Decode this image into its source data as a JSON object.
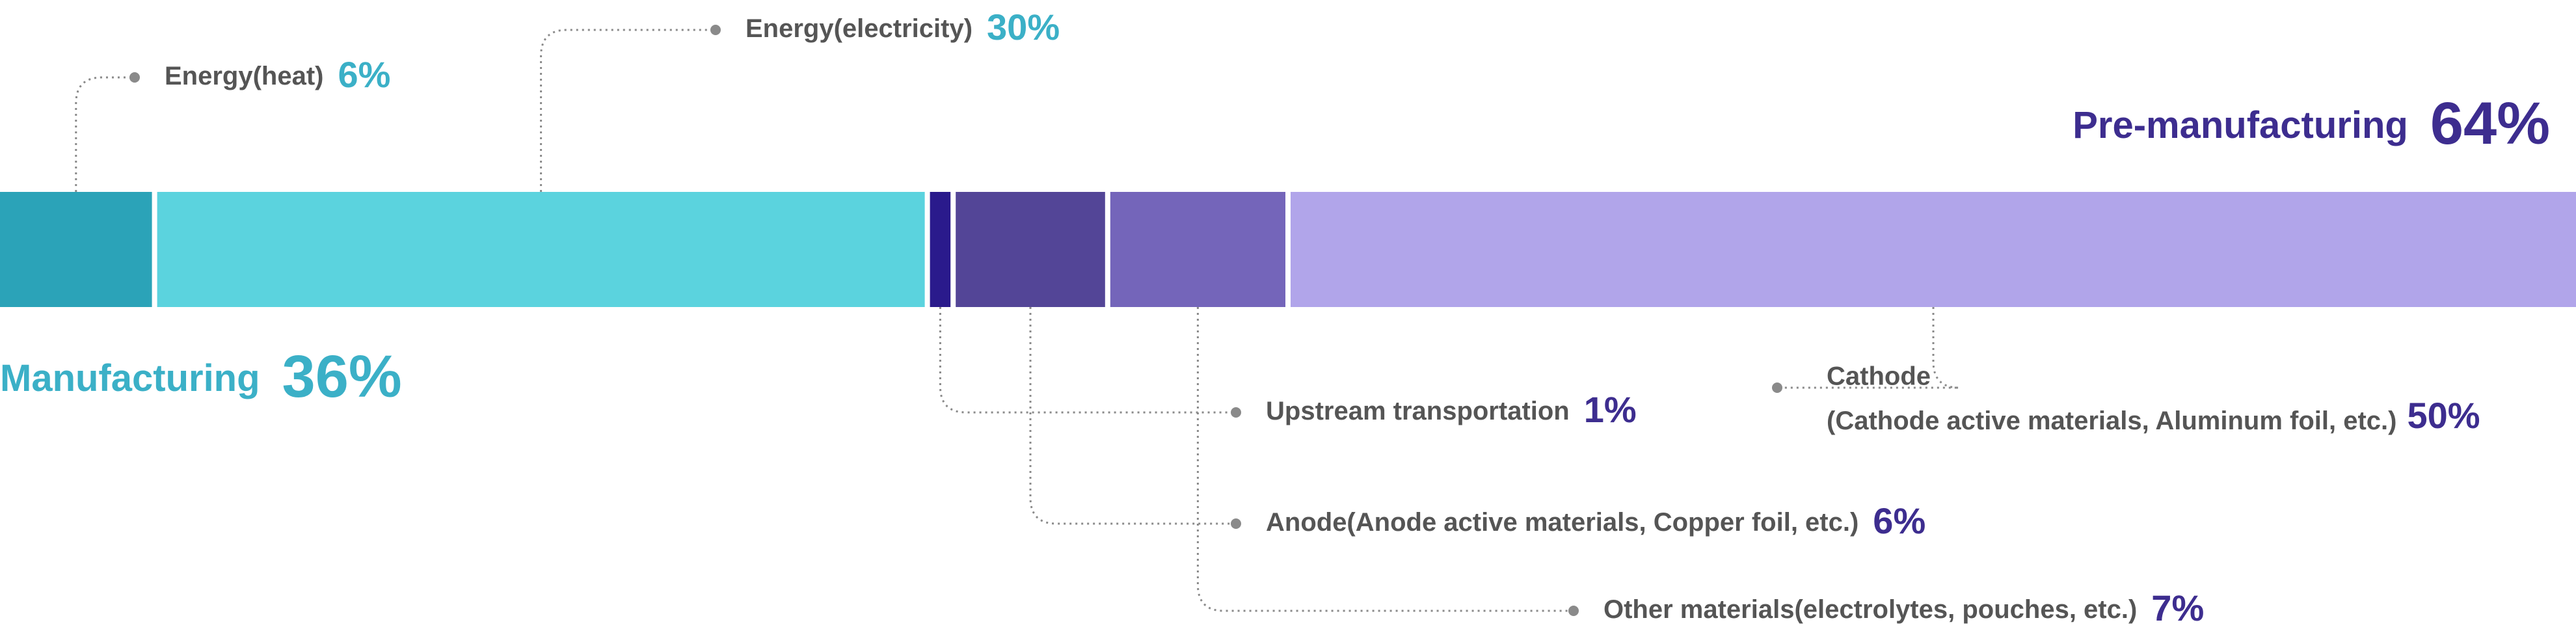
{
  "chart_data": {
    "type": "stacked-bar",
    "groups": [
      {
        "name": "Manufacturing",
        "value": 36,
        "value_label": "36%",
        "color": "#3bb0c7",
        "segments": [
          {
            "name": "Energy(heat)",
            "value": 6,
            "value_label": "6%",
            "color": "#2ba3b8"
          },
          {
            "name": "Energy(electricity)",
            "value": 30,
            "value_label": "30%",
            "color": "#5bd3de"
          }
        ]
      },
      {
        "name": "Pre-manufacturing",
        "value": 64,
        "value_label": "64%",
        "color": "#3d2d8f",
        "segments": [
          {
            "name": "Upstream transportation",
            "value": 1,
            "value_label": "1%",
            "color": "#2a1a8c"
          },
          {
            "name": "Anode(Anode active materials, Copper foil, etc.)",
            "value": 6,
            "value_label": "6%",
            "color": "#534597"
          },
          {
            "name": "Other materials(electrolytes, pouches, etc.)",
            "value": 7,
            "value_label": "7%",
            "color": "#7465ba"
          },
          {
            "name": "Cathode",
            "note": "(Cathode active materials, Aluminum foil, etc.)",
            "value": 50,
            "value_label": "50%",
            "color": "#b1a5ea"
          }
        ]
      }
    ]
  }
}
